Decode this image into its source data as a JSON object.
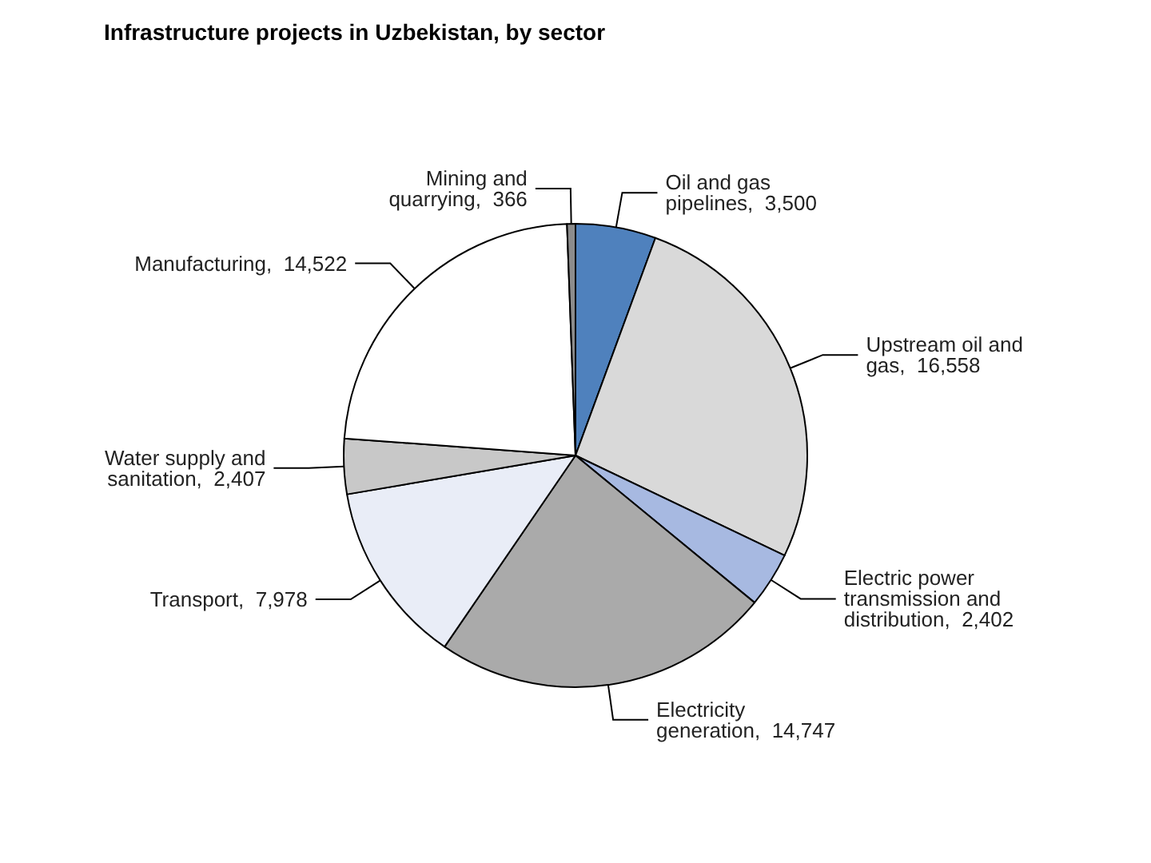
{
  "chart_data": {
    "type": "pie",
    "title": "Infrastructure projects in Uzbekistan, by sector",
    "categories": [
      "Oil and gas pipelines",
      "Upstream oil and gas",
      "Electric power transmission and distribution",
      "Electricity generation",
      "Transport",
      "Water supply and sanitation",
      "Manufacturing",
      "Mining and quarrying"
    ],
    "values": [
      3500,
      16558,
      2402,
      14747,
      7978,
      2407,
      14522,
      366
    ],
    "value_labels": [
      "3,500",
      "16,558",
      "2,402",
      "14,747",
      "7,978",
      "2,407",
      "14,522",
      "366"
    ],
    "colors": [
      "#4f81bd",
      "#d9d9d9",
      "#a7b9e1",
      "#aaaaaa",
      "#e9edf7",
      "#c8c8c8",
      "#ffffff",
      "#8c8c8c"
    ],
    "legend": false
  }
}
